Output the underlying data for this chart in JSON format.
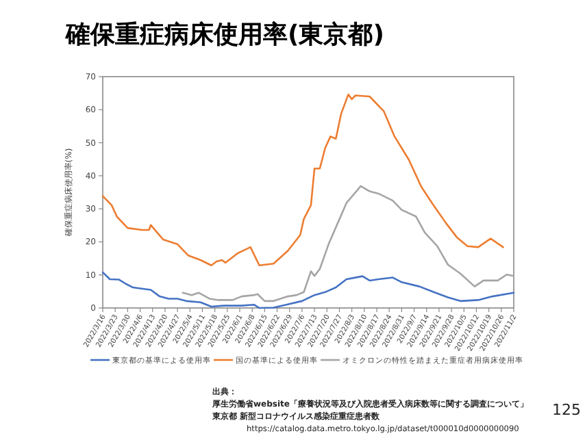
{
  "chart_data": {
    "type": "line",
    "title": "確保重症病床使用率(東京都)",
    "ylabel": "確保重症病床使用率(%)",
    "xlim": [
      "2022-03-16",
      "2022-11-02"
    ],
    "xticks": [
      {
        "value": "2022-03-16",
        "label": "2022/3/16"
      },
      {
        "value": "2022-03-23",
        "label": "2022/3/23"
      },
      {
        "value": "2022-03-30",
        "label": "2022/3/30"
      },
      {
        "value": "2022-04-06",
        "label": "2022/4/6"
      },
      {
        "value": "2022-04-13",
        "label": "2022/4/13"
      },
      {
        "value": "2022-04-20",
        "label": "2022/4/20"
      },
      {
        "value": "2022-04-27",
        "label": "2022/4/27"
      },
      {
        "value": "2022-05-04",
        "label": "2022/5/4"
      },
      {
        "value": "2022-05-11",
        "label": "2022/5/11"
      },
      {
        "value": "2022-05-18",
        "label": "2022/5/18"
      },
      {
        "value": "2022-05-25",
        "label": "2022/5/25"
      },
      {
        "value": "2022-06-01",
        "label": "2022/6/1"
      },
      {
        "value": "2022-06-08",
        "label": "2022/6/8"
      },
      {
        "value": "2022-06-15",
        "label": "2022/6/15"
      },
      {
        "value": "2022-06-22",
        "label": "2022/6/22"
      },
      {
        "value": "2022-06-29",
        "label": "2022/6/29"
      },
      {
        "value": "2022-07-06",
        "label": "2022/7/6"
      },
      {
        "value": "2022-07-13",
        "label": "2022/7/13"
      },
      {
        "value": "2022-07-20",
        "label": "2022/7/20"
      },
      {
        "value": "2022-07-27",
        "label": "2022/7/27"
      },
      {
        "value": "2022-08-03",
        "label": "2022/8/3"
      },
      {
        "value": "2022-08-10",
        "label": "2022/8/10"
      },
      {
        "value": "2022-08-17",
        "label": "2022/8/17"
      },
      {
        "value": "2022-08-24",
        "label": "2022/8/24"
      },
      {
        "value": "2022-08-31",
        "label": "2022/8/31"
      },
      {
        "value": "2022-09-07",
        "label": "2022/9/7"
      },
      {
        "value": "2022-09-14",
        "label": "2022/9/14"
      },
      {
        "value": "2022-09-21",
        "label": "2022/9/21"
      },
      {
        "value": "2022-09-28",
        "label": "2022/9/28"
      },
      {
        "value": "2022-10-05",
        "label": "2022/10/5"
      },
      {
        "value": "2022-10-12",
        "label": "2022/10/12"
      },
      {
        "value": "2022-10-19",
        "label": "2022/10/19"
      },
      {
        "value": "2022-10-26",
        "label": "2022/10/26"
      },
      {
        "value": "2022-11-02",
        "label": "2022/11/2"
      }
    ],
    "ylim": [
      0,
      70
    ],
    "yticks": [
      0,
      10,
      20,
      30,
      40,
      50,
      60,
      70
    ],
    "grid": false,
    "legend": "bottom",
    "marker": "none",
    "line_style": "solid",
    "series": [
      {
        "name": "東京都の基準による使用率",
        "color": "#4472c4",
        "x": [
          "2022-03-16",
          "2022-03-20",
          "2022-03-25",
          "2022-03-29",
          "2022-04-02",
          "2022-04-09",
          "2022-04-12",
          "2022-04-17",
          "2022-04-22",
          "2022-04-27",
          "2022-05-02",
          "2022-05-10",
          "2022-05-16",
          "2022-05-23",
          "2022-06-02",
          "2022-06-09",
          "2022-06-12",
          "2022-06-20",
          "2022-06-28",
          "2022-07-06",
          "2022-07-13",
          "2022-07-19",
          "2022-07-25",
          "2022-07-31",
          "2022-08-09",
          "2022-08-13",
          "2022-08-18",
          "2022-08-26",
          "2022-08-31",
          "2022-09-10",
          "2022-09-18",
          "2022-09-26",
          "2022-10-03",
          "2022-10-13",
          "2022-10-21",
          "2022-11-02"
        ],
        "values": [
          10.8,
          8.7,
          8.6,
          7.3,
          6.2,
          5.7,
          5.5,
          3.5,
          2.8,
          2.8,
          2.1,
          1.7,
          0.4,
          0.7,
          0.7,
          1.0,
          0,
          0.1,
          1.1,
          2.1,
          3.9,
          4.8,
          6.2,
          8.7,
          9.6,
          8.3,
          8.7,
          9.2,
          7.8,
          6.5,
          4.8,
          3.2,
          2.1,
          2.4,
          3.5,
          4.6
        ]
      },
      {
        "name": "国の基準による使用率",
        "color": "#ed7d31",
        "x": [
          "2022-03-16",
          "2022-03-21",
          "2022-03-24",
          "2022-03-30",
          "2022-04-07",
          "2022-04-11",
          "2022-04-12",
          "2022-04-19",
          "2022-04-27",
          "2022-05-03",
          "2022-05-10",
          "2022-05-16",
          "2022-05-19",
          "2022-05-22",
          "2022-05-24",
          "2022-05-31",
          "2022-06-07",
          "2022-06-12",
          "2022-06-20",
          "2022-06-28",
          "2022-07-03",
          "2022-07-05",
          "2022-07-07",
          "2022-07-11",
          "2022-07-13",
          "2022-07-16",
          "2022-07-19",
          "2022-07-22",
          "2022-07-25",
          "2022-07-28",
          "2022-08-01",
          "2022-08-03",
          "2022-08-05",
          "2022-08-13",
          "2022-08-21",
          "2022-08-27",
          "2022-09-04",
          "2022-09-11",
          "2022-09-17",
          "2022-09-25",
          "2022-10-01",
          "2022-10-07",
          "2022-10-13",
          "2022-10-20",
          "2022-10-27"
        ],
        "values": [
          33.9,
          31.1,
          27.6,
          24.2,
          23.6,
          23.6,
          25.1,
          20.7,
          19.3,
          15.9,
          14.5,
          12.9,
          14.1,
          14.5,
          13.7,
          16.6,
          18.4,
          12.9,
          13.4,
          17.3,
          20.7,
          22.1,
          26.9,
          31.1,
          42.2,
          42.2,
          48.4,
          51.9,
          51.2,
          58.8,
          64.6,
          63.2,
          64.3,
          64.0,
          59.5,
          51.9,
          44.9,
          36.7,
          31.8,
          25.6,
          21.4,
          18.7,
          18.4,
          21.0,
          18.4
        ]
      },
      {
        "name": "オミクロンの特性を踏まえた重症者用病床使用率",
        "color": "#a5a5a5",
        "x": [
          "2022-04-30",
          "2022-05-05",
          "2022-05-09",
          "2022-05-15",
          "2022-05-20",
          "2022-05-28",
          "2022-06-02",
          "2022-06-09",
          "2022-06-11",
          "2022-06-15",
          "2022-06-20",
          "2022-06-28",
          "2022-07-03",
          "2022-07-07",
          "2022-07-11",
          "2022-07-13",
          "2022-07-16",
          "2022-07-21",
          "2022-07-26",
          "2022-07-31",
          "2022-08-08",
          "2022-08-13",
          "2022-08-18",
          "2022-08-26",
          "2022-08-31",
          "2022-09-08",
          "2022-09-13",
          "2022-09-20",
          "2022-09-26",
          "2022-10-03",
          "2022-10-11",
          "2022-10-16",
          "2022-10-24",
          "2022-10-29",
          "2022-11-02"
        ],
        "values": [
          4.6,
          3.9,
          4.6,
          2.8,
          2.4,
          2.4,
          3.5,
          3.9,
          4.2,
          2.1,
          2.1,
          3.5,
          3.9,
          4.8,
          11.1,
          9.7,
          11.8,
          19.4,
          25.6,
          31.8,
          36.9,
          35.3,
          34.6,
          32.5,
          29.7,
          27.7,
          22.8,
          18.7,
          13.1,
          10.4,
          6.5,
          8.3,
          8.3,
          10.1,
          9.7
        ]
      }
    ],
    "annotations": [
      "出典：",
      "厚生労働省website「療養状況等及び入院患者受入病床数等に関する調査について」",
      "東京都 新型コロナウイルス感染症重症患者数",
      "https://catalog.data.metro.tokyo.lg.jp/dataset/t000010d0000000090",
      "125"
    ]
  }
}
